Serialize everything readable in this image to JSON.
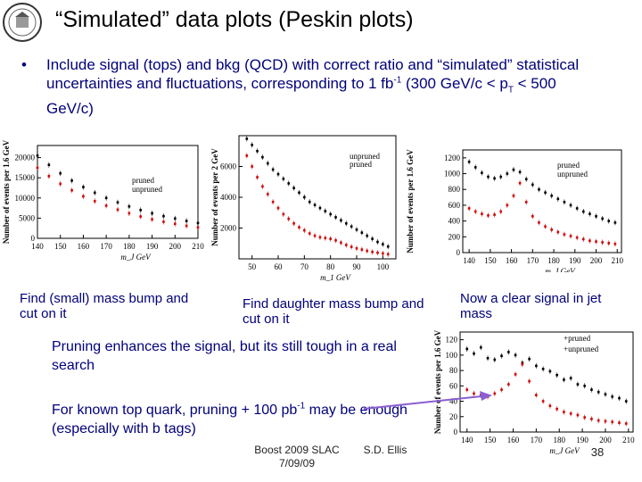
{
  "slide": {
    "title": "“Simulated” data plots (Peskin plots)",
    "bullet_marker": "•",
    "bullet_text": "Include signal (tops) and bkg (QCD) with correct ratio and “simulated” statistical uncertainties and fluctuations, corresponding to 1 fb",
    "bullet_sup": "-1",
    "bullet_tail": " (300 GeV/c < p",
    "bullet_sub": "T",
    "bullet_end": " < 500 GeV/c)",
    "caption_left": "Find (small) mass bump and cut on it",
    "caption_mid": "Find daughter mass bump and cut on it",
    "caption_right": "Now a clear signal in jet mass",
    "pruning_note": "Pruning enhances the signal, but its still tough in a real search",
    "known_top_note": "For known top quark, pruning + 100 pb",
    "known_top_sup": "-1",
    "known_top_tail": " may be enough (especially with b tags)",
    "footer_left": "Boost 2009 SLAC",
    "footer_date": "7/09/09",
    "footer_author": "S.D. Ellis",
    "page_number": "38",
    "arrow_color": "#8a5fd0"
  },
  "chart_data": [
    {
      "type": "scatter",
      "ylabel": "Number of events per 1.6 GeV",
      "xlabel": "m_J GeV",
      "x_ticks": [
        "140",
        "150",
        "160",
        "170",
        "180",
        "190",
        "200",
        "210"
      ],
      "y_ticks": [
        "0",
        "5000",
        "10000",
        "15000",
        "20000"
      ],
      "xlim": [
        140,
        210
      ],
      "ylim": [
        0,
        23000
      ],
      "legend": [
        "pruned",
        "unpruned"
      ],
      "legend_colors": [
        "#d00000",
        "#000000"
      ],
      "legend_placement": "center-right",
      "series": [
        {
          "name": "pruned",
          "color": "#d00000",
          "x": [
            140,
            145,
            150,
            155,
            160,
            165,
            170,
            175,
            180,
            185,
            190,
            195,
            200,
            205,
            210
          ],
          "y": [
            17500,
            15400,
            13500,
            11900,
            10400,
            9200,
            8100,
            7100,
            6200,
            5400,
            4700,
            4100,
            3600,
            3100,
            2700
          ]
        },
        {
          "name": "unpruned",
          "color": "#000000",
          "x": [
            140,
            145,
            150,
            155,
            160,
            165,
            170,
            175,
            180,
            185,
            190,
            195,
            200,
            205,
            210
          ],
          "y": [
            20500,
            18200,
            16100,
            14300,
            12700,
            11300,
            10000,
            8900,
            7900,
            7000,
            6200,
            5500,
            4900,
            4300,
            3800
          ]
        }
      ]
    },
    {
      "type": "scatter",
      "ylabel": "Number of events per 2 GeV",
      "xlabel": "m_1 GeV",
      "x_ticks": [
        "50",
        "60",
        "70",
        "80",
        "90",
        "100"
      ],
      "y_ticks": [
        "2000",
        "4000",
        "6000"
      ],
      "xlim": [
        45,
        105
      ],
      "ylim": [
        0,
        8000
      ],
      "legend": [
        "unpruned",
        "pruned"
      ],
      "legend_colors": [
        "#000000",
        "#d00000"
      ],
      "legend_placement": "top-right",
      "series": [
        {
          "name": "unpruned",
          "color": "#000000",
          "x": [
            48,
            50,
            52,
            54,
            56,
            58,
            60,
            62,
            64,
            66,
            68,
            70,
            72,
            74,
            76,
            78,
            80,
            82,
            84,
            86,
            88,
            90,
            92,
            94,
            96,
            98,
            100,
            102
          ],
          "y": [
            7800,
            7400,
            7000,
            6600,
            6200,
            5800,
            5500,
            5200,
            4900,
            4600,
            4300,
            4000,
            3700,
            3500,
            3300,
            3100,
            2900,
            2700,
            2500,
            2300,
            2100,
            1900,
            1700,
            1500,
            1300,
            1100,
            950,
            800
          ]
        },
        {
          "name": "pruned",
          "color": "#d00000",
          "x": [
            48,
            50,
            52,
            54,
            56,
            58,
            60,
            62,
            64,
            66,
            68,
            70,
            72,
            74,
            76,
            78,
            80,
            82,
            84,
            86,
            88,
            90,
            92,
            94,
            96,
            98,
            100,
            102
          ],
          "y": [
            6700,
            6000,
            5300,
            4700,
            4200,
            3700,
            3300,
            2900,
            2600,
            2300,
            2050,
            1850,
            1650,
            1500,
            1400,
            1350,
            1300,
            1200,
            1050,
            900,
            780,
            680,
            600,
            520,
            450,
            400,
            350,
            300
          ]
        }
      ]
    },
    {
      "type": "scatter",
      "ylabel": "Number of events per 1.6 GeV",
      "xlabel": "m_J GeV",
      "x_ticks": [
        "140",
        "150",
        "160",
        "170",
        "180",
        "190",
        "200",
        "210"
      ],
      "y_ticks": [
        "0",
        "200",
        "400",
        "600",
        "800",
        "1000",
        "1200"
      ],
      "xlim": [
        137,
        212
      ],
      "ylim": [
        0,
        1300
      ],
      "legend": [
        "pruned",
        "unpruned"
      ],
      "legend_colors": [
        "#d00000",
        "#000000"
      ],
      "legend_placement": "top-right",
      "series": [
        {
          "name": "unpruned",
          "color": "#000000",
          "x": [
            140,
            143,
            146,
            149,
            152,
            155,
            158,
            161,
            164,
            167,
            170,
            173,
            176,
            179,
            182,
            185,
            188,
            191,
            194,
            197,
            200,
            203,
            206,
            209
          ],
          "y": [
            1150,
            1080,
            1010,
            960,
            940,
            960,
            1000,
            1050,
            1020,
            930,
            860,
            800,
            760,
            720,
            680,
            640,
            600,
            560,
            520,
            490,
            460,
            430,
            400,
            380
          ]
        },
        {
          "name": "pruned",
          "color": "#d00000",
          "x": [
            140,
            143,
            146,
            149,
            152,
            155,
            158,
            161,
            164,
            167,
            170,
            173,
            176,
            179,
            182,
            185,
            188,
            191,
            194,
            197,
            200,
            203,
            206,
            209
          ],
          "y": [
            560,
            520,
            490,
            470,
            480,
            520,
            600,
            720,
            880,
            640,
            460,
            380,
            330,
            290,
            260,
            230,
            210,
            190,
            170,
            150,
            140,
            130,
            120,
            110
          ]
        }
      ]
    },
    {
      "type": "scatter",
      "ylabel": "Number of events per 1.6 GeV",
      "xlabel": "m_J GeV",
      "x_ticks": [
        "140",
        "150",
        "160",
        "170",
        "180",
        "190",
        "200",
        "210"
      ],
      "y_ticks": [
        "0",
        "20",
        "40",
        "60",
        "80",
        "100",
        "120"
      ],
      "xlim": [
        137,
        212
      ],
      "ylim": [
        0,
        130
      ],
      "legend": [
        "+pruned",
        "+unpruned"
      ],
      "legend_colors": [
        "#d00000",
        "#000000"
      ],
      "legend_placement": "top-right",
      "series": [
        {
          "name": "+unpruned",
          "color": "#000000",
          "x": [
            140,
            143,
            146,
            149,
            152,
            155,
            158,
            161,
            164,
            167,
            170,
            173,
            176,
            179,
            182,
            185,
            188,
            191,
            194,
            197,
            200,
            203,
            206,
            209
          ],
          "y": [
            108,
            102,
            110,
            96,
            94,
            99,
            104,
            100,
            90,
            95,
            86,
            82,
            79,
            74,
            68,
            70,
            62,
            60,
            55,
            52,
            49,
            46,
            44,
            40
          ]
        },
        {
          "name": "+pruned",
          "color": "#d00000",
          "x": [
            140,
            143,
            146,
            149,
            152,
            155,
            158,
            161,
            164,
            167,
            170,
            173,
            176,
            179,
            182,
            185,
            188,
            191,
            194,
            197,
            200,
            203,
            206,
            209
          ],
          "y": [
            55,
            50,
            48,
            46,
            50,
            55,
            62,
            75,
            88,
            66,
            48,
            40,
            34,
            30,
            26,
            24,
            22,
            19,
            17,
            15,
            14,
            13,
            12,
            11
          ]
        }
      ]
    }
  ]
}
